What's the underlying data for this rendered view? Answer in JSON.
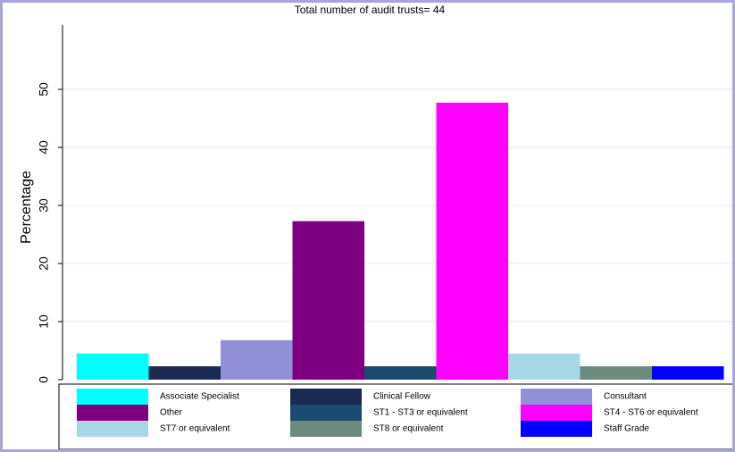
{
  "chart_data": {
    "type": "bar",
    "title": "Total number of audit trusts= 44",
    "xlabel": "",
    "ylabel": "Percentage",
    "ylim": [
      0,
      58
    ],
    "yticks": [
      0,
      10,
      20,
      30,
      40,
      50
    ],
    "grid": true,
    "legend_position": "bottom",
    "categories": [
      "Associate Specialist",
      "Clinical Fellow",
      "Consultant",
      "Other",
      "ST1 - ST3 or equivalent",
      "ST4 - ST6 or equivalent",
      "ST7 or equivalent",
      "ST8 or equivalent",
      "Staff Grade"
    ],
    "values": [
      4.5,
      2.3,
      6.8,
      27.3,
      2.3,
      47.7,
      4.5,
      2.3,
      2.3
    ],
    "colors": [
      "#00ffff",
      "#1a2a52",
      "#9290d6",
      "#7d0080",
      "#1a4a72",
      "#ff00ff",
      "#a8d8e8",
      "#6d8a7e",
      "#0000ff"
    ],
    "grid_color": "#eaeaea",
    "frame_color": "#a6a6dc"
  }
}
